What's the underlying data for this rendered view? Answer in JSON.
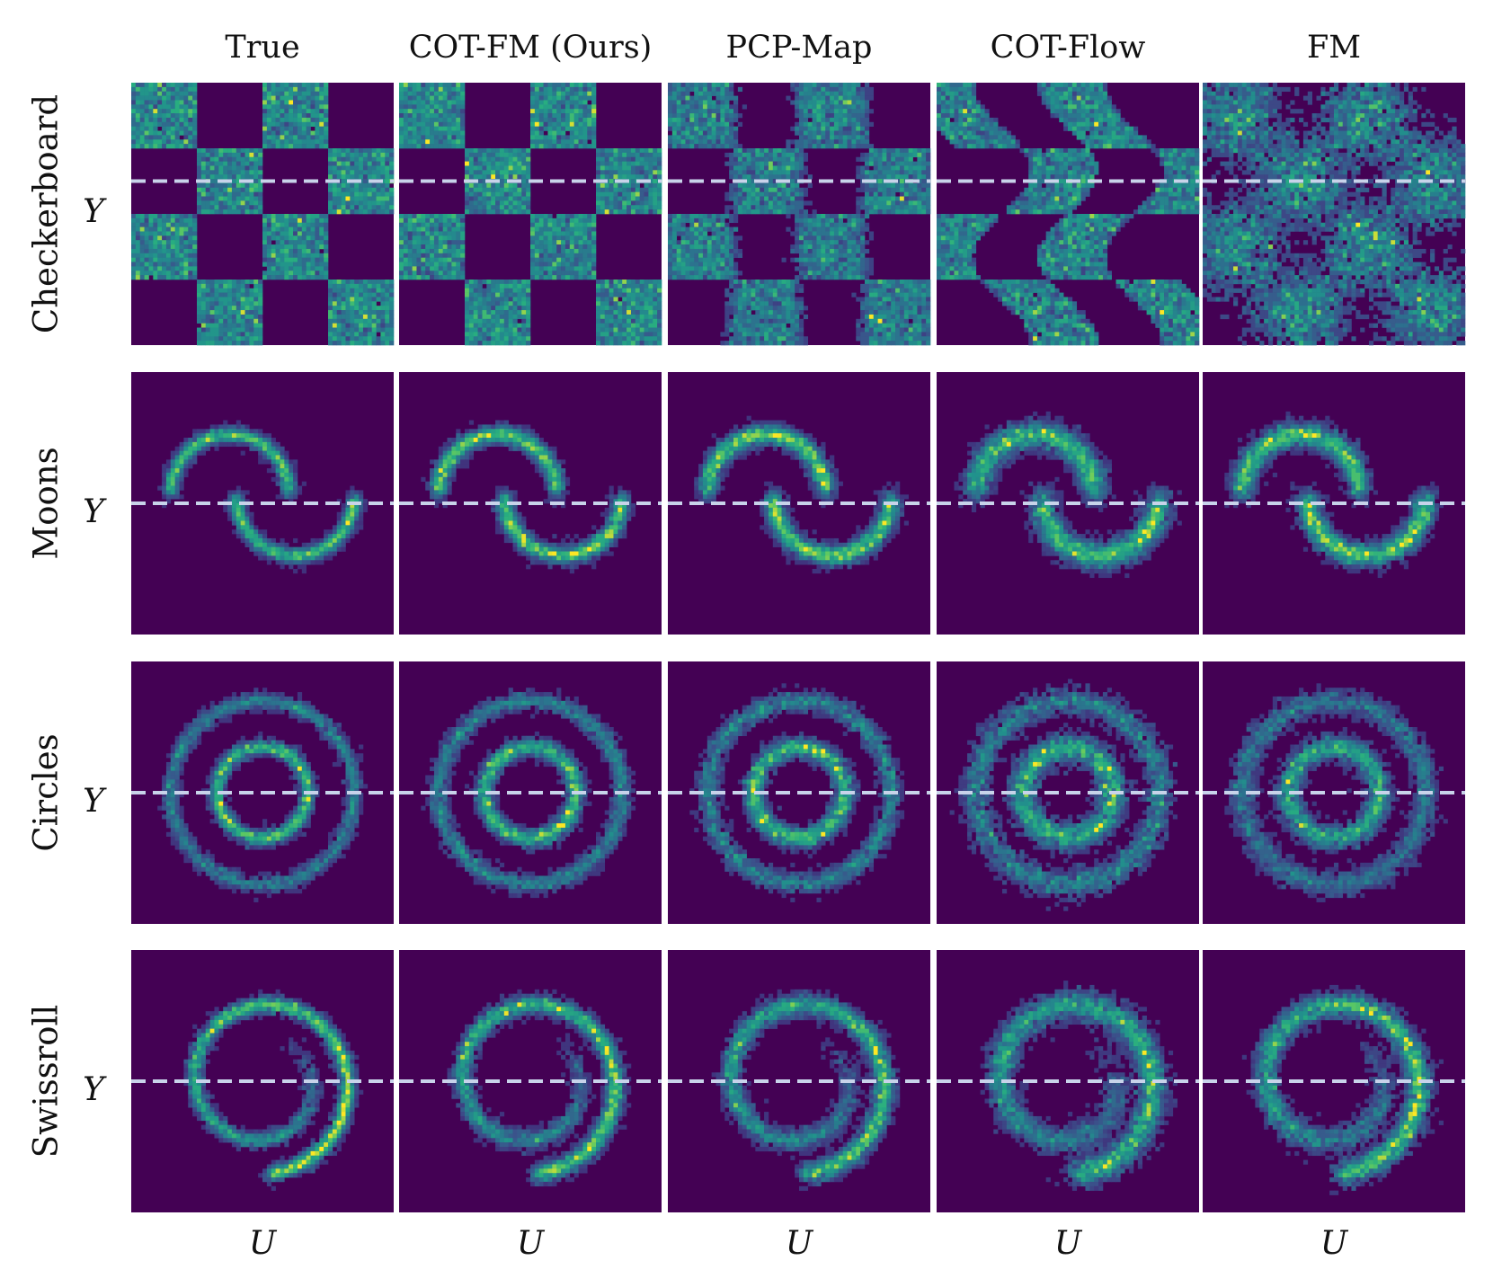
{
  "chart_data": {
    "type": "heatmap",
    "title": "",
    "description_colormap": "viridis",
    "columns": [
      "True",
      "COT-FM (Ours)",
      "PCP-Map",
      "COT-Flow",
      "FM"
    ],
    "rows": [
      "Checkerboard",
      "Moons",
      "Circles",
      "Swissroll"
    ],
    "xlabel": "U",
    "ylabel": "Y",
    "xlim": [
      -4,
      4
    ],
    "ylim": [
      -4,
      4
    ],
    "conditioning_line_y": [
      1.0,
      0.0,
      0.0,
      0.0
    ],
    "conditioning_line_style": "dashed",
    "conditioning_line_color": "#c8d3ea",
    "bins": 60,
    "datasets": {
      "Checkerboard": {
        "shape": "checkerboard",
        "cell_size": 2,
        "extent": [
          -4,
          4
        ]
      },
      "Moons": {
        "shape": "two-moons",
        "radius": 2,
        "centers": [
          [
            -1,
            0
          ],
          [
            1,
            0
          ]
        ]
      },
      "Circles": {
        "shape": "concentric-circles",
        "radii": [
          1.4,
          2.8
        ]
      },
      "Swissroll": {
        "shape": "spiral",
        "turns": 1.4
      }
    },
    "colors": {
      "background": "#440154",
      "low": "#3b528b",
      "mid": "#21918c",
      "high": "#5ec962",
      "peak": "#fde725",
      "line": "#c8d3ea"
    }
  }
}
